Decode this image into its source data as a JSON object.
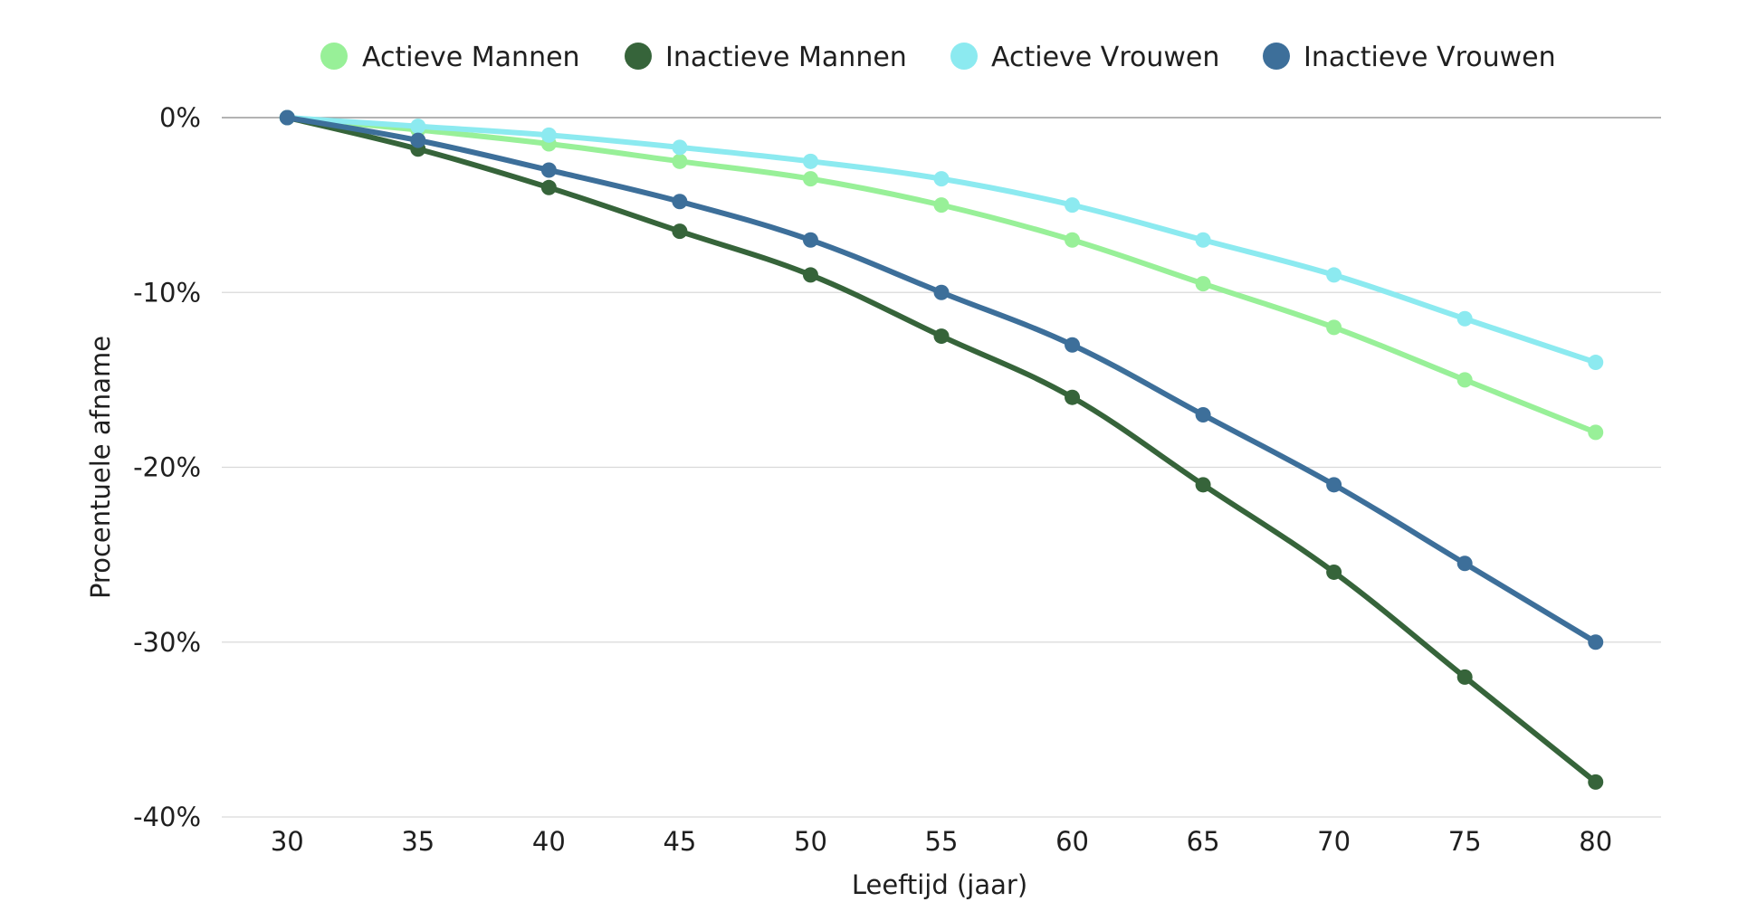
{
  "chart_data": {
    "type": "line",
    "xlabel": "Leeftijd (jaar)",
    "ylabel": "Procentuele afname",
    "x": [
      30,
      35,
      40,
      45,
      50,
      55,
      60,
      65,
      70,
      75,
      80
    ],
    "xticks": [
      "30",
      "35",
      "40",
      "45",
      "50",
      "55",
      "60",
      "65",
      "70",
      "75",
      "80"
    ],
    "yticks": [
      {
        "value": 0,
        "label": "0%"
      },
      {
        "value": -10,
        "label": "-10%"
      },
      {
        "value": -20,
        "label": "-20%"
      },
      {
        "value": -30,
        "label": "-30%"
      },
      {
        "value": -40,
        "label": "-40%"
      }
    ],
    "ylim": [
      -40,
      0
    ],
    "xlim": [
      27.5,
      82.5
    ],
    "grid": true,
    "legend": "top-center",
    "series": [
      {
        "name": "Actieve Mannen",
        "color": "#98f098",
        "values": [
          0,
          -0.7,
          -1.5,
          -2.5,
          -3.5,
          -5,
          -7,
          -9.5,
          -12,
          -15,
          -18
        ]
      },
      {
        "name": "Inactieve Mannen",
        "color": "#36643a",
        "values": [
          0,
          -1.8,
          -4,
          -6.5,
          -9,
          -12.5,
          -16,
          -21,
          -26,
          -32,
          -38
        ]
      },
      {
        "name": "Actieve Vrouwen",
        "color": "#8ceaf0",
        "values": [
          0,
          -0.5,
          -1,
          -1.7,
          -2.5,
          -3.5,
          -5,
          -7,
          -9,
          -11.5,
          -14
        ]
      },
      {
        "name": "Inactieve Vrouwen",
        "color": "#3d6f9a",
        "values": [
          0,
          -1.3,
          -3,
          -4.8,
          -7,
          -10,
          -13,
          -17,
          -21,
          -25.5,
          -30
        ]
      }
    ]
  }
}
